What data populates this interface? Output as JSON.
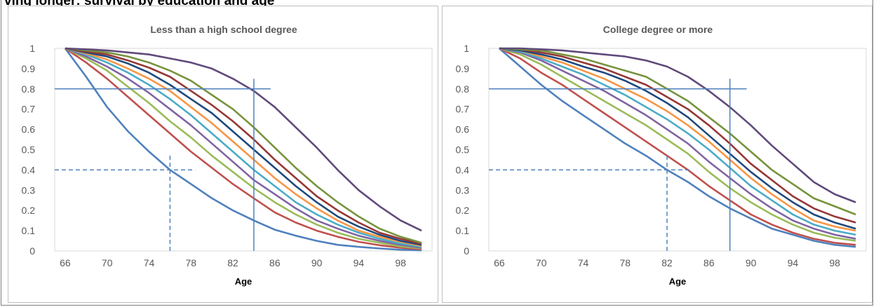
{
  "page_title": "ving longer: survival by education and age",
  "colors": {
    "guide": "#4f81bd",
    "series": [
      "#4f81bd",
      "#c0504d",
      "#9bbb59",
      "#8064a2",
      "#4bacc6",
      "#f79646",
      "#1f497d",
      "#953735",
      "#77933c",
      "#604a7b"
    ]
  },
  "chart_data": [
    {
      "type": "line",
      "title": "Less than a high school degree",
      "xlabel": "Age",
      "ylabel": "",
      "xlim": [
        65,
        101
      ],
      "ylim": [
        0,
        1
      ],
      "x_ticks": [
        66,
        70,
        74,
        78,
        82,
        86,
        90,
        94,
        98
      ],
      "y_ticks": [
        0,
        0.1,
        0.2,
        0.3,
        0.4,
        0.5,
        0.6,
        0.7,
        0.8,
        0.9,
        1
      ],
      "x": [
        66,
        68,
        70,
        72,
        74,
        76,
        78,
        80,
        82,
        84,
        86,
        88,
        90,
        92,
        94,
        96,
        98,
        100
      ],
      "series": [
        {
          "values": [
            1.0,
            0.86,
            0.71,
            0.59,
            0.49,
            0.4,
            0.33,
            0.26,
            0.2,
            0.15,
            0.105,
            0.075,
            0.05,
            0.03,
            0.02,
            0.012,
            0.006,
            0.003
          ]
        },
        {
          "values": [
            1.0,
            0.93,
            0.85,
            0.76,
            0.67,
            0.58,
            0.49,
            0.41,
            0.33,
            0.26,
            0.19,
            0.14,
            0.1,
            0.07,
            0.045,
            0.028,
            0.016,
            0.008
          ]
        },
        {
          "values": [
            1.0,
            0.95,
            0.89,
            0.81,
            0.73,
            0.64,
            0.56,
            0.47,
            0.39,
            0.31,
            0.24,
            0.18,
            0.13,
            0.09,
            0.06,
            0.04,
            0.022,
            0.012
          ]
        },
        {
          "values": [
            1.0,
            0.96,
            0.91,
            0.85,
            0.78,
            0.7,
            0.62,
            0.53,
            0.44,
            0.35,
            0.28,
            0.21,
            0.15,
            0.11,
            0.075,
            0.05,
            0.03,
            0.016
          ]
        },
        {
          "values": [
            1.0,
            0.97,
            0.93,
            0.88,
            0.82,
            0.75,
            0.67,
            0.58,
            0.49,
            0.4,
            0.32,
            0.24,
            0.18,
            0.13,
            0.09,
            0.06,
            0.036,
            0.02
          ]
        },
        {
          "values": [
            1.0,
            0.975,
            0.945,
            0.9,
            0.85,
            0.79,
            0.71,
            0.63,
            0.54,
            0.45,
            0.36,
            0.28,
            0.21,
            0.15,
            0.1,
            0.07,
            0.045,
            0.025
          ]
        },
        {
          "values": [
            1.0,
            0.98,
            0.96,
            0.925,
            0.88,
            0.82,
            0.75,
            0.68,
            0.59,
            0.5,
            0.41,
            0.32,
            0.24,
            0.17,
            0.12,
            0.08,
            0.05,
            0.03
          ]
        },
        {
          "values": [
            1.0,
            0.985,
            0.97,
            0.94,
            0.905,
            0.86,
            0.79,
            0.72,
            0.64,
            0.55,
            0.45,
            0.36,
            0.27,
            0.2,
            0.14,
            0.09,
            0.06,
            0.035
          ]
        },
        {
          "values": [
            1.0,
            0.99,
            0.98,
            0.96,
            0.93,
            0.89,
            0.84,
            0.77,
            0.7,
            0.61,
            0.51,
            0.41,
            0.32,
            0.24,
            0.17,
            0.11,
            0.07,
            0.04
          ]
        },
        {
          "values": [
            1.0,
            0.995,
            0.99,
            0.98,
            0.97,
            0.95,
            0.93,
            0.9,
            0.85,
            0.79,
            0.71,
            0.61,
            0.51,
            0.4,
            0.3,
            0.22,
            0.15,
            0.1
          ]
        }
      ],
      "guides": {
        "solid": {
          "age": 84,
          "share": 0.8
        },
        "dashed": {
          "age": 76,
          "share": 0.4
        }
      }
    },
    {
      "type": "line",
      "title": "College degree  or more",
      "xlabel": "Age",
      "ylabel": "",
      "xlim": [
        65,
        101
      ],
      "ylim": [
        0,
        1
      ],
      "x_ticks": [
        66,
        70,
        74,
        78,
        82,
        86,
        90,
        94,
        98
      ],
      "y_ticks": [
        0,
        0.1,
        0.2,
        0.3,
        0.4,
        0.5,
        0.6,
        0.7,
        0.8,
        0.9,
        1
      ],
      "x": [
        66,
        68,
        70,
        72,
        74,
        76,
        78,
        80,
        82,
        84,
        86,
        88,
        90,
        92,
        94,
        96,
        98,
        100
      ],
      "series": [
        {
          "values": [
            1.0,
            0.91,
            0.82,
            0.74,
            0.67,
            0.6,
            0.53,
            0.47,
            0.4,
            0.34,
            0.27,
            0.21,
            0.16,
            0.11,
            0.08,
            0.05,
            0.03,
            0.02
          ]
        },
        {
          "values": [
            1.0,
            0.95,
            0.88,
            0.82,
            0.75,
            0.68,
            0.61,
            0.54,
            0.47,
            0.4,
            0.32,
            0.25,
            0.18,
            0.13,
            0.09,
            0.06,
            0.04,
            0.03
          ]
        },
        {
          "values": [
            1.0,
            0.97,
            0.92,
            0.86,
            0.8,
            0.74,
            0.68,
            0.62,
            0.55,
            0.48,
            0.39,
            0.31,
            0.24,
            0.18,
            0.13,
            0.09,
            0.065,
            0.05
          ]
        },
        {
          "values": [
            1.0,
            0.98,
            0.94,
            0.89,
            0.84,
            0.79,
            0.73,
            0.67,
            0.6,
            0.53,
            0.44,
            0.36,
            0.28,
            0.21,
            0.15,
            0.11,
            0.08,
            0.06
          ]
        },
        {
          "values": [
            1.0,
            0.985,
            0.95,
            0.91,
            0.87,
            0.82,
            0.77,
            0.71,
            0.65,
            0.58,
            0.5,
            0.41,
            0.32,
            0.25,
            0.18,
            0.13,
            0.1,
            0.08
          ]
        },
        {
          "values": [
            1.0,
            0.99,
            0.96,
            0.93,
            0.89,
            0.85,
            0.8,
            0.75,
            0.69,
            0.62,
            0.54,
            0.45,
            0.36,
            0.28,
            0.21,
            0.15,
            0.12,
            0.1
          ]
        },
        {
          "values": [
            1.0,
            0.99,
            0.97,
            0.945,
            0.91,
            0.88,
            0.84,
            0.79,
            0.73,
            0.66,
            0.57,
            0.48,
            0.39,
            0.31,
            0.24,
            0.18,
            0.14,
            0.11
          ]
        },
        {
          "values": [
            1.0,
            0.995,
            0.98,
            0.96,
            0.93,
            0.9,
            0.86,
            0.82,
            0.76,
            0.7,
            0.62,
            0.53,
            0.43,
            0.35,
            0.27,
            0.21,
            0.17,
            0.14
          ]
        },
        {
          "values": [
            1.0,
            0.995,
            0.99,
            0.97,
            0.95,
            0.92,
            0.89,
            0.86,
            0.8,
            0.74,
            0.66,
            0.58,
            0.49,
            0.4,
            0.33,
            0.26,
            0.22,
            0.18
          ]
        },
        {
          "values": [
            1.0,
            1.0,
            0.995,
            0.99,
            0.98,
            0.97,
            0.96,
            0.94,
            0.91,
            0.86,
            0.79,
            0.71,
            0.62,
            0.52,
            0.43,
            0.34,
            0.28,
            0.24
          ]
        }
      ],
      "guides": {
        "solid": {
          "age": 88,
          "share": 0.8
        },
        "dashed": {
          "age": 82,
          "share": 0.4
        }
      }
    }
  ]
}
